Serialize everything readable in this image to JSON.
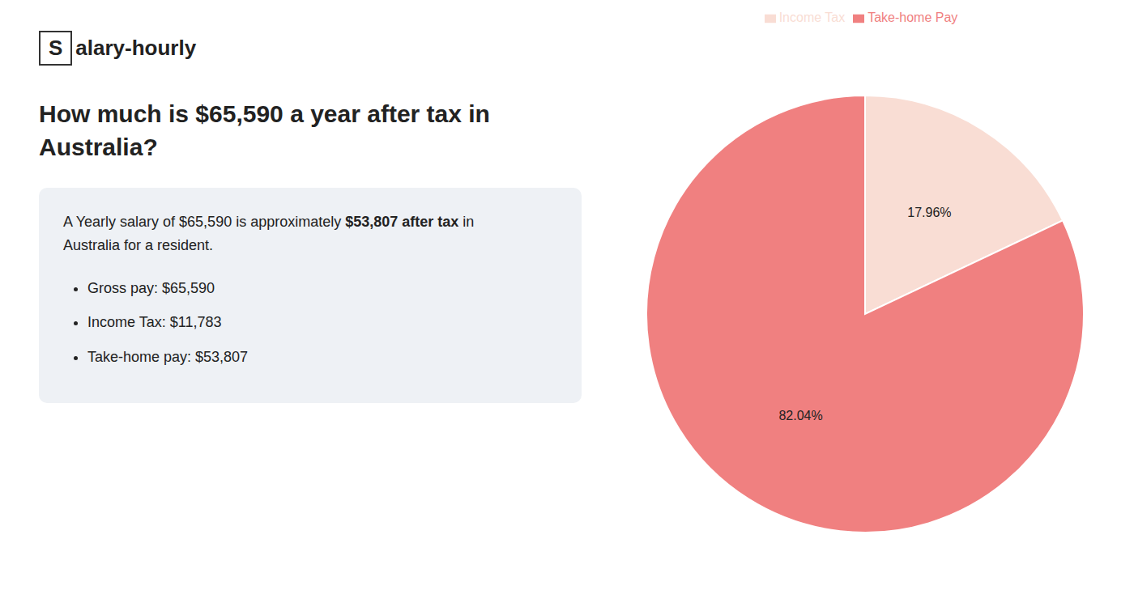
{
  "chart_data": {
    "type": "pie",
    "title": "How much is $65,590 a year after tax in Australia?",
    "annotations": [
      "S",
      "alary-hourly",
      "A Yearly salary of $65,590 is approximately ",
      "$53,807 after tax",
      " in",
      "Australia for a resident.",
      "Gross pay: $65,590",
      "Income Tax: $11,783",
      "Take-home pay: $53,807"
    ],
    "categories": [
      "Income Tax",
      "Take-home Pay"
    ],
    "values": [
      17.96,
      82.04
    ],
    "value_labels": [
      "17.96%",
      "82.04%"
    ],
    "colors": [
      "#f9ddd4",
      "#f08080"
    ],
    "data_labels": true,
    "legend": "top"
  }
}
